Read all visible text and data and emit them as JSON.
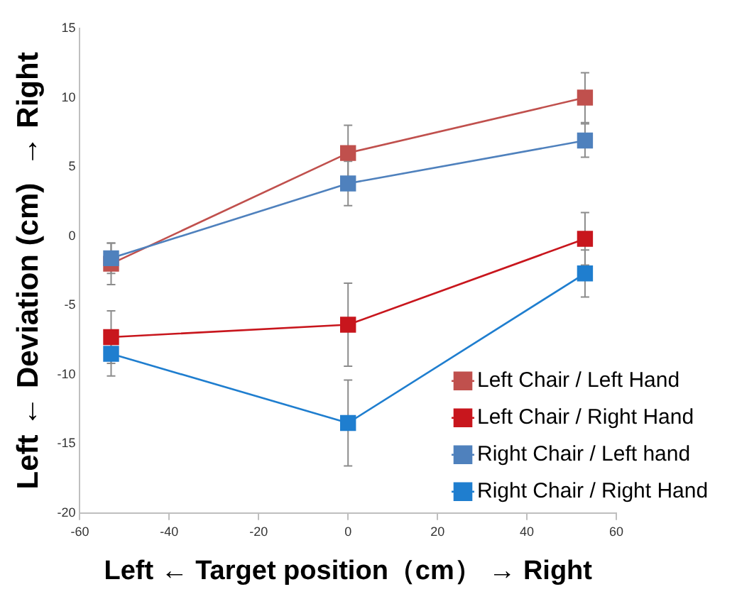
{
  "chart_data": {
    "type": "line",
    "xlabel": "Left ← Target position（cm） → Right",
    "ylabel": "Left ← Deviation (cm)  → Right",
    "x": [
      -53,
      0,
      53
    ],
    "xlim": [
      -60,
      60
    ],
    "xticks": [
      -60,
      -40,
      -20,
      0,
      20,
      40,
      60
    ],
    "ylim": [
      -20,
      15
    ],
    "yticks": [
      -20,
      -15,
      -10,
      -5,
      0,
      5,
      10,
      15
    ],
    "grid": false,
    "legend": "bottom right",
    "marker": "square",
    "line_style": "solid",
    "series": [
      {
        "name": "Left Chair / Left Hand",
        "color": "#c0504d",
        "values": [
          -2.0,
          6.0,
          10.0
        ],
        "errors": [
          1.5,
          2.0,
          1.8
        ]
      },
      {
        "name": "Left Chair / Right Hand",
        "color": "#c8161d",
        "values": [
          -7.3,
          -6.4,
          -0.2
        ],
        "errors": [
          1.9,
          3.0,
          1.9
        ]
      },
      {
        "name": "Right Chair / Left hand",
        "color": "#4f81bd",
        "values": [
          -1.6,
          3.8,
          6.9
        ],
        "errors": [
          1.1,
          1.6,
          1.2
        ]
      },
      {
        "name": "Right Chair / Right Hand",
        "color": "#1f7ecf",
        "values": [
          -8.5,
          -13.5,
          -2.7
        ],
        "errors": [
          1.6,
          3.1,
          1.7
        ]
      }
    ]
  }
}
